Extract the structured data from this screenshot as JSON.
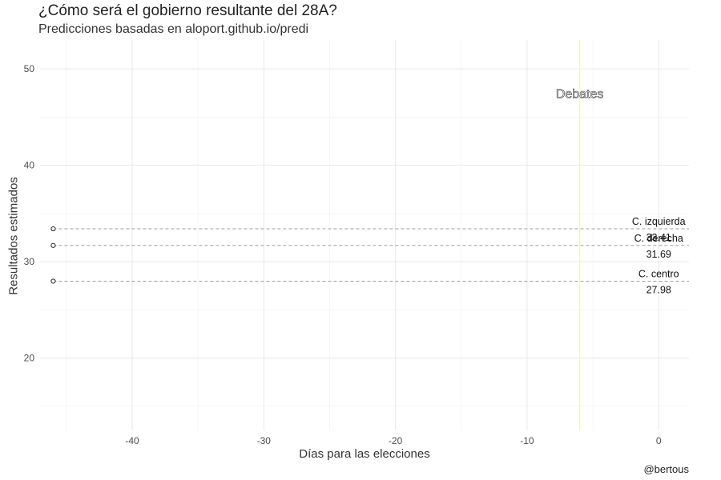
{
  "chart_data": {
    "type": "scatter",
    "title": "¿Cómo será el gobierno resultante del 28A?",
    "subtitle": "Predicciones basadas en aloport.github.io/predi",
    "xlabel": "Días para las elecciones",
    "ylabel": "Resultados estimados",
    "caption": "@bertous",
    "xlim": [
      -47,
      2.3
    ],
    "ylim": [
      12.5,
      53
    ],
    "x_ticks": [
      -40,
      -30,
      -20,
      -10,
      0
    ],
    "y_ticks": [
      20,
      30,
      40,
      50
    ],
    "grid": true,
    "annotation": {
      "text": "Debates",
      "x": -6,
      "y": 47.5,
      "vline_x": -6,
      "color": "#ffff66"
    },
    "series": [
      {
        "name": "C. izquierda",
        "value_label": "33.41",
        "x": [
          -46
        ],
        "y": [
          33.41
        ],
        "line_to_x": 0
      },
      {
        "name": "C. derecha",
        "value_label": "31.69",
        "x": [
          -46
        ],
        "y": [
          31.69
        ],
        "line_to_x": 0
      },
      {
        "name": "C. centro",
        "value_label": "27.98",
        "x": [
          -46
        ],
        "y": [
          27.98
        ],
        "line_to_x": 0
      }
    ]
  }
}
